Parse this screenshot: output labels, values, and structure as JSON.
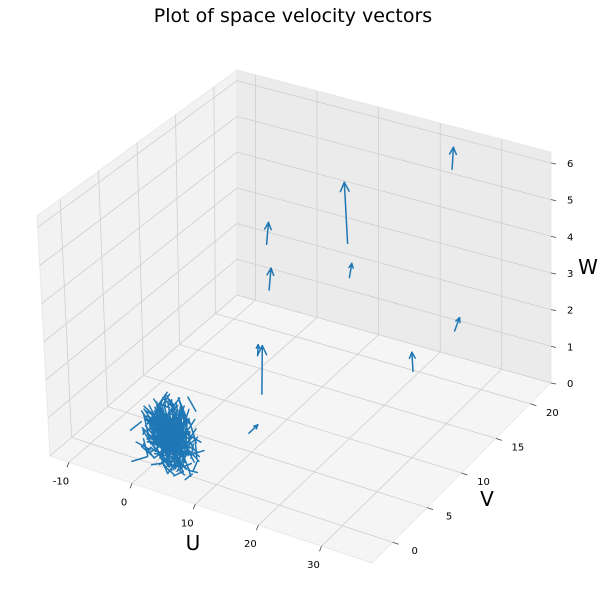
{
  "chart_data": {
    "type": "quiver3d",
    "title": "Plot of space velocity vectors",
    "xlabel": "U",
    "ylabel": "V",
    "zlabel": "W",
    "xlim": [
      -13,
      38
    ],
    "ylim": [
      -3,
      23
    ],
    "zlim": [
      0,
      6.3
    ],
    "x_ticks": [
      "-10",
      "0",
      "10",
      "20",
      "30"
    ],
    "y_ticks": [
      "0",
      "5",
      "10",
      "15",
      "20"
    ],
    "z_ticks": [
      "0",
      "1",
      "2",
      "3",
      "4",
      "5",
      "6"
    ],
    "grid": true,
    "series_color": "#1f77b4",
    "notable_vectors": [
      {
        "x": 24,
        "y": 22,
        "z": 5.5,
        "u": 0.4,
        "v": 0.0,
        "w": 0.6
      },
      {
        "x": 15,
        "y": 15,
        "z": 4.2,
        "u": 0.0,
        "v": 0.0,
        "w": 1.6
      },
      {
        "x": 15,
        "y": 15,
        "z": 3.3,
        "u": 0.5,
        "v": 0.0,
        "w": 0.4
      },
      {
        "x": 8,
        "y": 10,
        "z": 4.6,
        "u": 0.5,
        "v": 0.0,
        "w": 0.6
      },
      {
        "x": 8,
        "y": 10,
        "z": 3.4,
        "u": 0.5,
        "v": 0.0,
        "w": 0.6
      },
      {
        "x": 22,
        "y": 17,
        "z": 0.9,
        "u": 0.0,
        "v": 0.0,
        "w": 0.5
      },
      {
        "x": 23,
        "y": 22,
        "z": 1.2,
        "u": 0.9,
        "v": 0.0,
        "w": 0.4
      },
      {
        "x": 12,
        "y": 5,
        "z": 1.7,
        "u": 0.5,
        "v": 0.0,
        "w": 1.3
      },
      {
        "x": 12,
        "y": 3,
        "z": 1.0,
        "u": 1.5,
        "v": 0.0,
        "w": 0.3
      },
      {
        "x": 8,
        "y": 8,
        "z": 2.0,
        "u": 0.2,
        "v": 0.0,
        "w": 0.3
      }
    ],
    "cluster": {
      "x_center": 3,
      "y_center": 0,
      "z_center": 0.8,
      "x_spread": 6,
      "y_spread": 2,
      "z_spread": 1.2,
      "approx_count": 450
    }
  }
}
